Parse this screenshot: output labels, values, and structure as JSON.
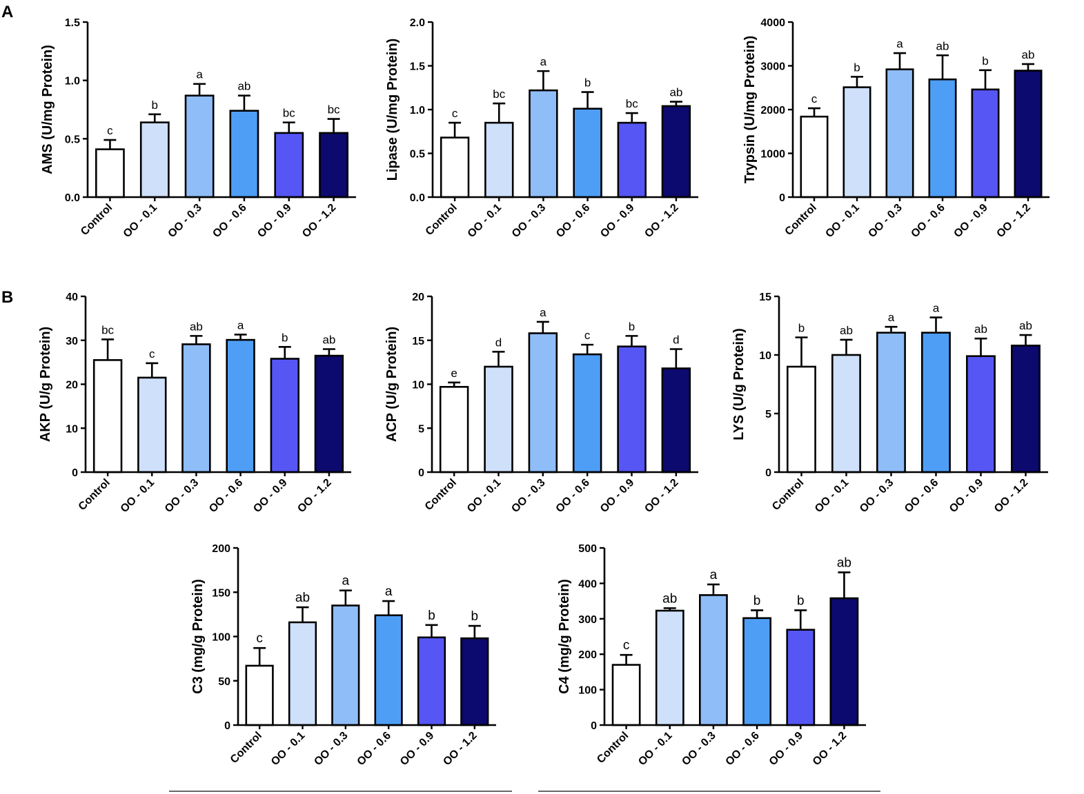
{
  "panel_labels": [
    "A",
    "B"
  ],
  "groups": [
    "Control",
    "OO - 0.1",
    "OO - 0.3",
    "OO - 0.6",
    "OO - 0.9",
    "OO - 1.2"
  ],
  "colors": {
    "bar_fills": [
      "#ffffff",
      "#cfe0fb",
      "#8fbdf8",
      "#4f9ef6",
      "#5656f5",
      "#0c0a6e"
    ],
    "stroke": "#000000"
  },
  "chart_data": [
    {
      "type": "bar",
      "panel": "A",
      "ylabel": "AMS (U/mg Protein)",
      "categories": [
        "Control",
        "OO - 0.1",
        "OO - 0.3",
        "OO - 0.6",
        "OO - 0.9",
        "OO - 1.2"
      ],
      "values": [
        0.41,
        0.64,
        0.87,
        0.74,
        0.55,
        0.55
      ],
      "errors": [
        0.08,
        0.07,
        0.1,
        0.13,
        0.09,
        0.12
      ],
      "letters": [
        "c",
        "b",
        "a",
        "ab",
        "bc",
        "bc"
      ],
      "ylim": [
        0,
        1.5
      ],
      "yticks": [
        "0.0",
        "0.5",
        "1.0",
        "1.5"
      ]
    },
    {
      "type": "bar",
      "panel": "A",
      "ylabel": "Lipase (U/mg Protein)",
      "categories": [
        "Control",
        "OO - 0.1",
        "OO - 0.3",
        "OO - 0.6",
        "OO - 0.9",
        "OO - 1.2"
      ],
      "values": [
        0.68,
        0.85,
        1.22,
        1.01,
        0.85,
        1.04
      ],
      "errors": [
        0.17,
        0.22,
        0.22,
        0.19,
        0.11,
        0.05
      ],
      "letters": [
        "c",
        "bc",
        "a",
        "b",
        "bc",
        "ab"
      ],
      "ylim": [
        0,
        2.0
      ],
      "yticks": [
        "0.0",
        "0.5",
        "1.0",
        "1.5",
        "2.0"
      ]
    },
    {
      "type": "bar",
      "panel": "A",
      "ylabel": "Trypsin (U/mg Protein)",
      "categories": [
        "Control",
        "OO - 0.1",
        "OO - 0.3",
        "OO - 0.6",
        "OO - 0.9",
        "OO - 1.2"
      ],
      "values": [
        1840,
        2510,
        2920,
        2690,
        2460,
        2890
      ],
      "errors": [
        190,
        240,
        370,
        550,
        440,
        150
      ],
      "letters": [
        "c",
        "b",
        "a",
        "ab",
        "b",
        "ab"
      ],
      "ylim": [
        0,
        4000
      ],
      "yticks": [
        "0",
        "1000",
        "2000",
        "3000",
        "4000"
      ]
    },
    {
      "type": "bar",
      "panel": "B",
      "ylabel": "AKP (U/g Protein)",
      "categories": [
        "Control",
        "OO - 0.1",
        "OO - 0.3",
        "OO - 0.6",
        "OO - 0.9",
        "OO - 1.2"
      ],
      "values": [
        25.5,
        21.5,
        29.1,
        30.1,
        25.8,
        26.5
      ],
      "errors": [
        4.7,
        3.3,
        1.9,
        1.2,
        2.7,
        1.5
      ],
      "letters": [
        "bc",
        "c",
        "ab",
        "a",
        "b",
        "ab"
      ],
      "ylim": [
        0,
        40
      ],
      "yticks": [
        "0",
        "10",
        "20",
        "30",
        "40"
      ]
    },
    {
      "type": "bar",
      "panel": "B",
      "ylabel": "ACP (U/g Protein)",
      "categories": [
        "Control",
        "OO - 0.1",
        "OO - 0.3",
        "OO - 0.6",
        "OO - 0.9",
        "OO - 1.2"
      ],
      "values": [
        9.7,
        12.0,
        15.8,
        13.4,
        14.3,
        11.8
      ],
      "errors": [
        0.5,
        1.7,
        1.3,
        1.1,
        1.2,
        2.2
      ],
      "letters": [
        "e",
        "d",
        "a",
        "c",
        "b",
        "d"
      ],
      "ylim": [
        0,
        20
      ],
      "yticks": [
        "0",
        "5",
        "10",
        "15",
        "20"
      ]
    },
    {
      "type": "bar",
      "panel": "B",
      "ylabel": "LYS (U/g Protein)",
      "categories": [
        "Control",
        "OO - 0.1",
        "OO - 0.3",
        "OO - 0.6",
        "OO - 0.9",
        "OO - 1.2"
      ],
      "values": [
        9.0,
        10.0,
        11.9,
        11.9,
        9.9,
        10.8
      ],
      "errors": [
        2.5,
        1.3,
        0.5,
        1.3,
        1.5,
        0.9
      ],
      "letters": [
        "b",
        "ab",
        "a",
        "a",
        "ab",
        "ab"
      ],
      "ylim": [
        0,
        15
      ],
      "yticks": [
        "0",
        "5",
        "10",
        "15"
      ]
    },
    {
      "type": "bar",
      "panel": "B",
      "ylabel": "C3 (mg/g Protein)",
      "categories": [
        "Control",
        "OO - 0.1",
        "OO - 0.3",
        "OO - 0.6",
        "OO - 0.9",
        "OO - 1.2"
      ],
      "values": [
        67,
        116,
        135,
        124,
        99,
        98
      ],
      "errors": [
        20,
        17,
        17,
        16,
        14,
        14
      ],
      "letters": [
        "c",
        "ab",
        "a",
        "a",
        "b",
        "b"
      ],
      "ylim": [
        0,
        200
      ],
      "yticks": [
        "0",
        "50",
        "100",
        "150",
        "200"
      ]
    },
    {
      "type": "bar",
      "panel": "B",
      "ylabel": "C4 (mg/g Protein)",
      "categories": [
        "Control",
        "OO - 0.1",
        "OO - 0.3",
        "OO - 0.6",
        "OO - 0.9",
        "OO - 1.2"
      ],
      "values": [
        170,
        323,
        367,
        302,
        269,
        358
      ],
      "errors": [
        28,
        7,
        30,
        22,
        55,
        73
      ],
      "letters": [
        "c",
        "ab",
        "a",
        "b",
        "b",
        "ab"
      ],
      "ylim": [
        0,
        500
      ],
      "yticks": [
        "0",
        "100",
        "200",
        "300",
        "400",
        "500"
      ]
    }
  ]
}
